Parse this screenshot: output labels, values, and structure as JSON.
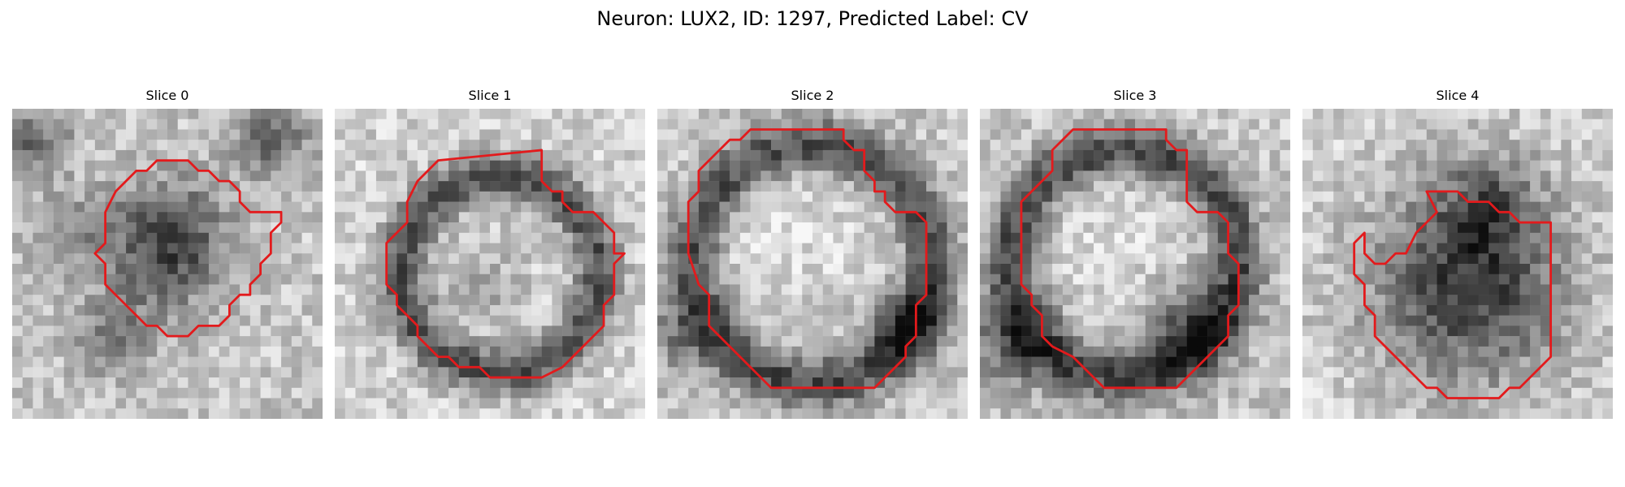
{
  "figure": {
    "title": "Neuron: LUX2, ID: 1297, Predicted Label: CV"
  },
  "panels": [
    {
      "title": "Slice 0",
      "contour_color": "#e31a1c"
    },
    {
      "title": "Slice 1",
      "contour_color": "#e31a1c"
    },
    {
      "title": "Slice 2",
      "contour_color": "#e31a1c"
    },
    {
      "title": "Slice 3",
      "contour_color": "#e31a1c"
    },
    {
      "title": "Slice 4",
      "contour_color": "#e31a1c"
    }
  ],
  "colormap": "gray"
}
